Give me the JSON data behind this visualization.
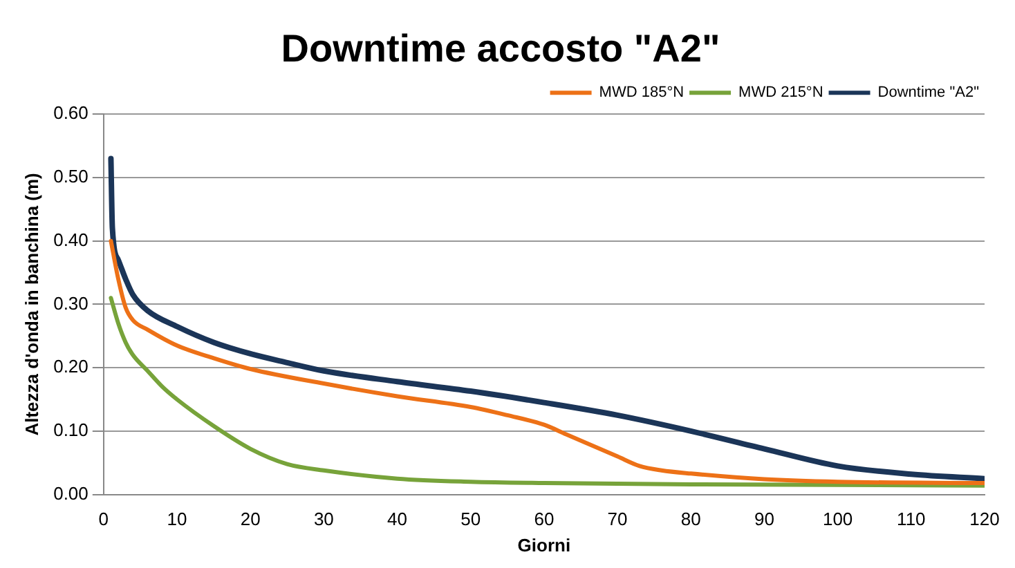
{
  "chart_data": {
    "type": "line",
    "title": "Downtime accosto \"A2\"",
    "xlabel": "Giorni",
    "ylabel": "Altezza d'onda in banchina (m)",
    "xlim": [
      0,
      120
    ],
    "xticks": [
      0,
      10,
      20,
      30,
      40,
      50,
      60,
      70,
      80,
      90,
      100,
      110,
      120
    ],
    "ylim": [
      0,
      0.6
    ],
    "yticks": [
      {
        "value": 0,
        "label": "0.00"
      },
      {
        "value": 0.1,
        "label": "0.10"
      },
      {
        "value": 0.2,
        "label": "0.20"
      },
      {
        "value": 0.3,
        "label": "0.30"
      },
      {
        "value": 0.4,
        "label": "0.40"
      },
      {
        "value": 0.5,
        "label": "0.50"
      },
      {
        "value": 0.6,
        "label": "0.60"
      }
    ],
    "grid": "y",
    "legend": "top right",
    "marker": "none",
    "line_style": "solid",
    "series": [
      {
        "name": "MWD 185°N",
        "color": "#ed7117",
        "x": [
          1,
          2,
          3,
          4,
          6,
          10,
          15,
          20,
          30,
          40,
          50,
          55,
          60,
          63,
          66,
          70,
          73,
          76,
          80,
          90,
          100,
          120
        ],
        "values": [
          0.4,
          0.34,
          0.295,
          0.275,
          0.26,
          0.235,
          0.215,
          0.198,
          0.175,
          0.155,
          0.138,
          0.125,
          0.11,
          0.095,
          0.08,
          0.06,
          0.045,
          0.038,
          0.033,
          0.024,
          0.02,
          0.018
        ]
      },
      {
        "name": "MWD 215°N",
        "color": "#77a33a",
        "x": [
          1,
          2,
          3,
          4,
          6,
          8,
          10,
          15,
          20,
          25,
          30,
          40,
          50,
          60,
          80,
          120
        ],
        "values": [
          0.31,
          0.27,
          0.24,
          0.22,
          0.195,
          0.17,
          0.15,
          0.108,
          0.072,
          0.048,
          0.038,
          0.025,
          0.02,
          0.018,
          0.016,
          0.014
        ]
      },
      {
        "name": "Downtime \"A2\"",
        "color": "#1b3558",
        "x": [
          1,
          1.2,
          2,
          3,
          4,
          6,
          10,
          15,
          20,
          25,
          30,
          40,
          50,
          60,
          70,
          80,
          90,
          100,
          110,
          120
        ],
        "values": [
          0.53,
          0.42,
          0.37,
          0.34,
          0.315,
          0.29,
          0.265,
          0.24,
          0.222,
          0.208,
          0.195,
          0.178,
          0.163,
          0.145,
          0.125,
          0.1,
          0.072,
          0.045,
          0.032,
          0.025
        ]
      }
    ]
  }
}
